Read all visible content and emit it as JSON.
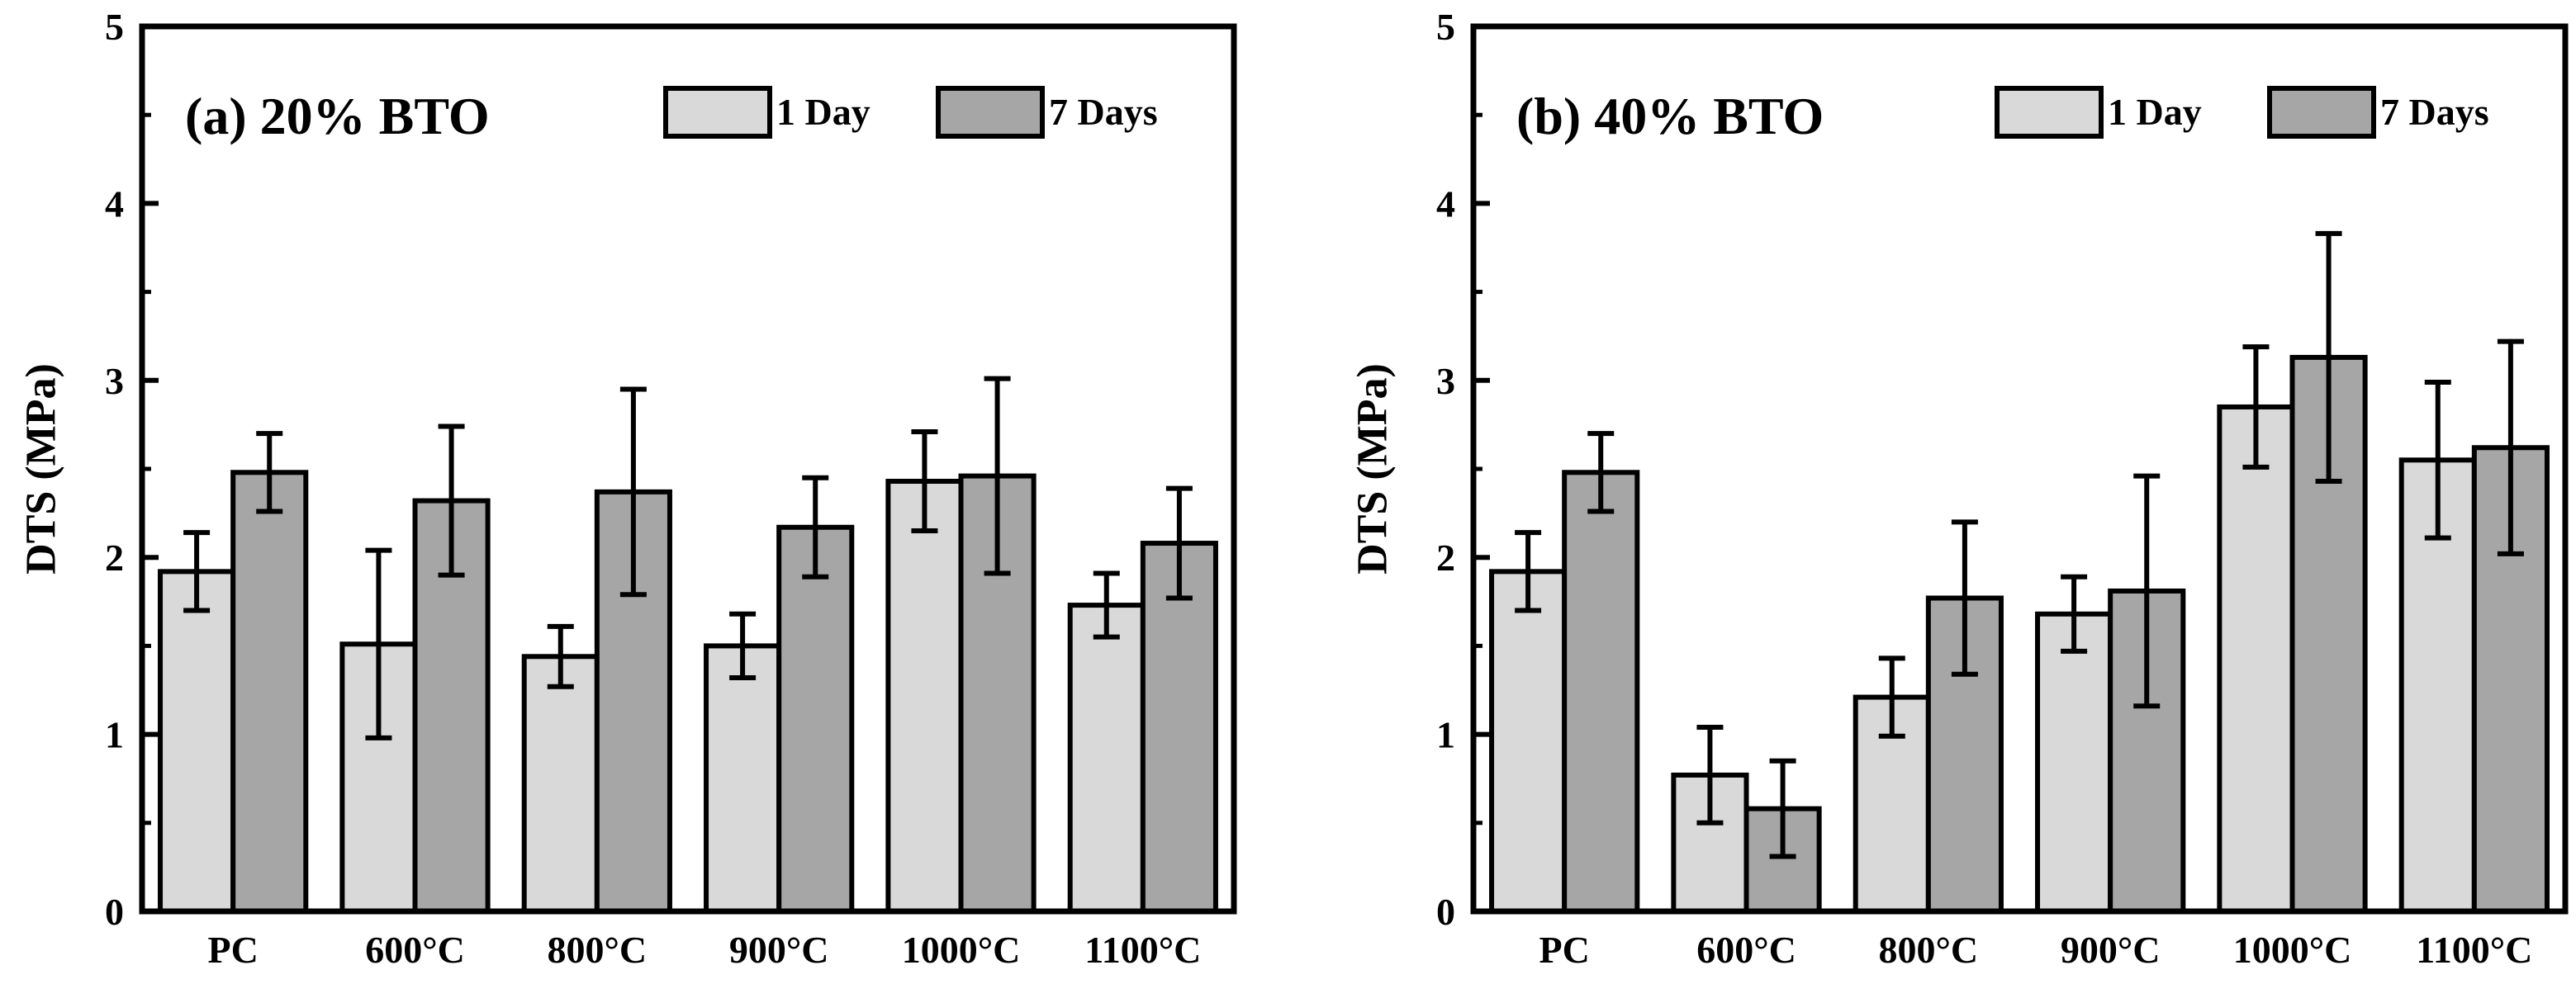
{
  "chart_data": [
    {
      "type": "bar",
      "title": "(a) 20% BTO",
      "ylabel": "DTS (MPa)",
      "xlabel": "",
      "ylim": [
        0,
        5
      ],
      "yticks": [
        0,
        1,
        2,
        3,
        4,
        5
      ],
      "categories": [
        "PC",
        "600°C",
        "800°C",
        "900°C",
        "1000°C",
        "1100°C"
      ],
      "legend_position": "top-right",
      "grid": false,
      "series": [
        {
          "name": "1 Day",
          "color": "#d9d9d9",
          "values": [
            1.92,
            1.51,
            1.44,
            1.5,
            2.43,
            1.73
          ],
          "errors": [
            0.22,
            0.53,
            0.17,
            0.18,
            0.28,
            0.18
          ]
        },
        {
          "name": "7 Days",
          "color": "#a6a6a6",
          "values": [
            2.48,
            2.32,
            2.37,
            2.17,
            2.46,
            2.08
          ],
          "errors": [
            0.22,
            0.42,
            0.58,
            0.28,
            0.55,
            0.31
          ]
        }
      ]
    },
    {
      "type": "bar",
      "title": "(b) 40% BTO",
      "ylabel": "DTS (MPa)",
      "xlabel": "",
      "ylim": [
        0,
        5
      ],
      "yticks": [
        0,
        1,
        2,
        3,
        4,
        5
      ],
      "categories": [
        "PC",
        "600°C",
        "800°C",
        "900°C",
        "1000°C",
        "1100°C"
      ],
      "legend_position": "top-right",
      "grid": false,
      "series": [
        {
          "name": "1 Day",
          "color": "#d9d9d9",
          "values": [
            1.92,
            0.77,
            1.21,
            1.68,
            2.85,
            2.55
          ],
          "errors": [
            0.22,
            0.27,
            0.22,
            0.21,
            0.34,
            0.44
          ]
        },
        {
          "name": "7 Days",
          "color": "#a6a6a6",
          "values": [
            2.48,
            0.58,
            1.77,
            1.81,
            3.13,
            2.62
          ],
          "errors": [
            0.22,
            0.27,
            0.43,
            0.65,
            0.7,
            0.6
          ]
        }
      ]
    }
  ]
}
